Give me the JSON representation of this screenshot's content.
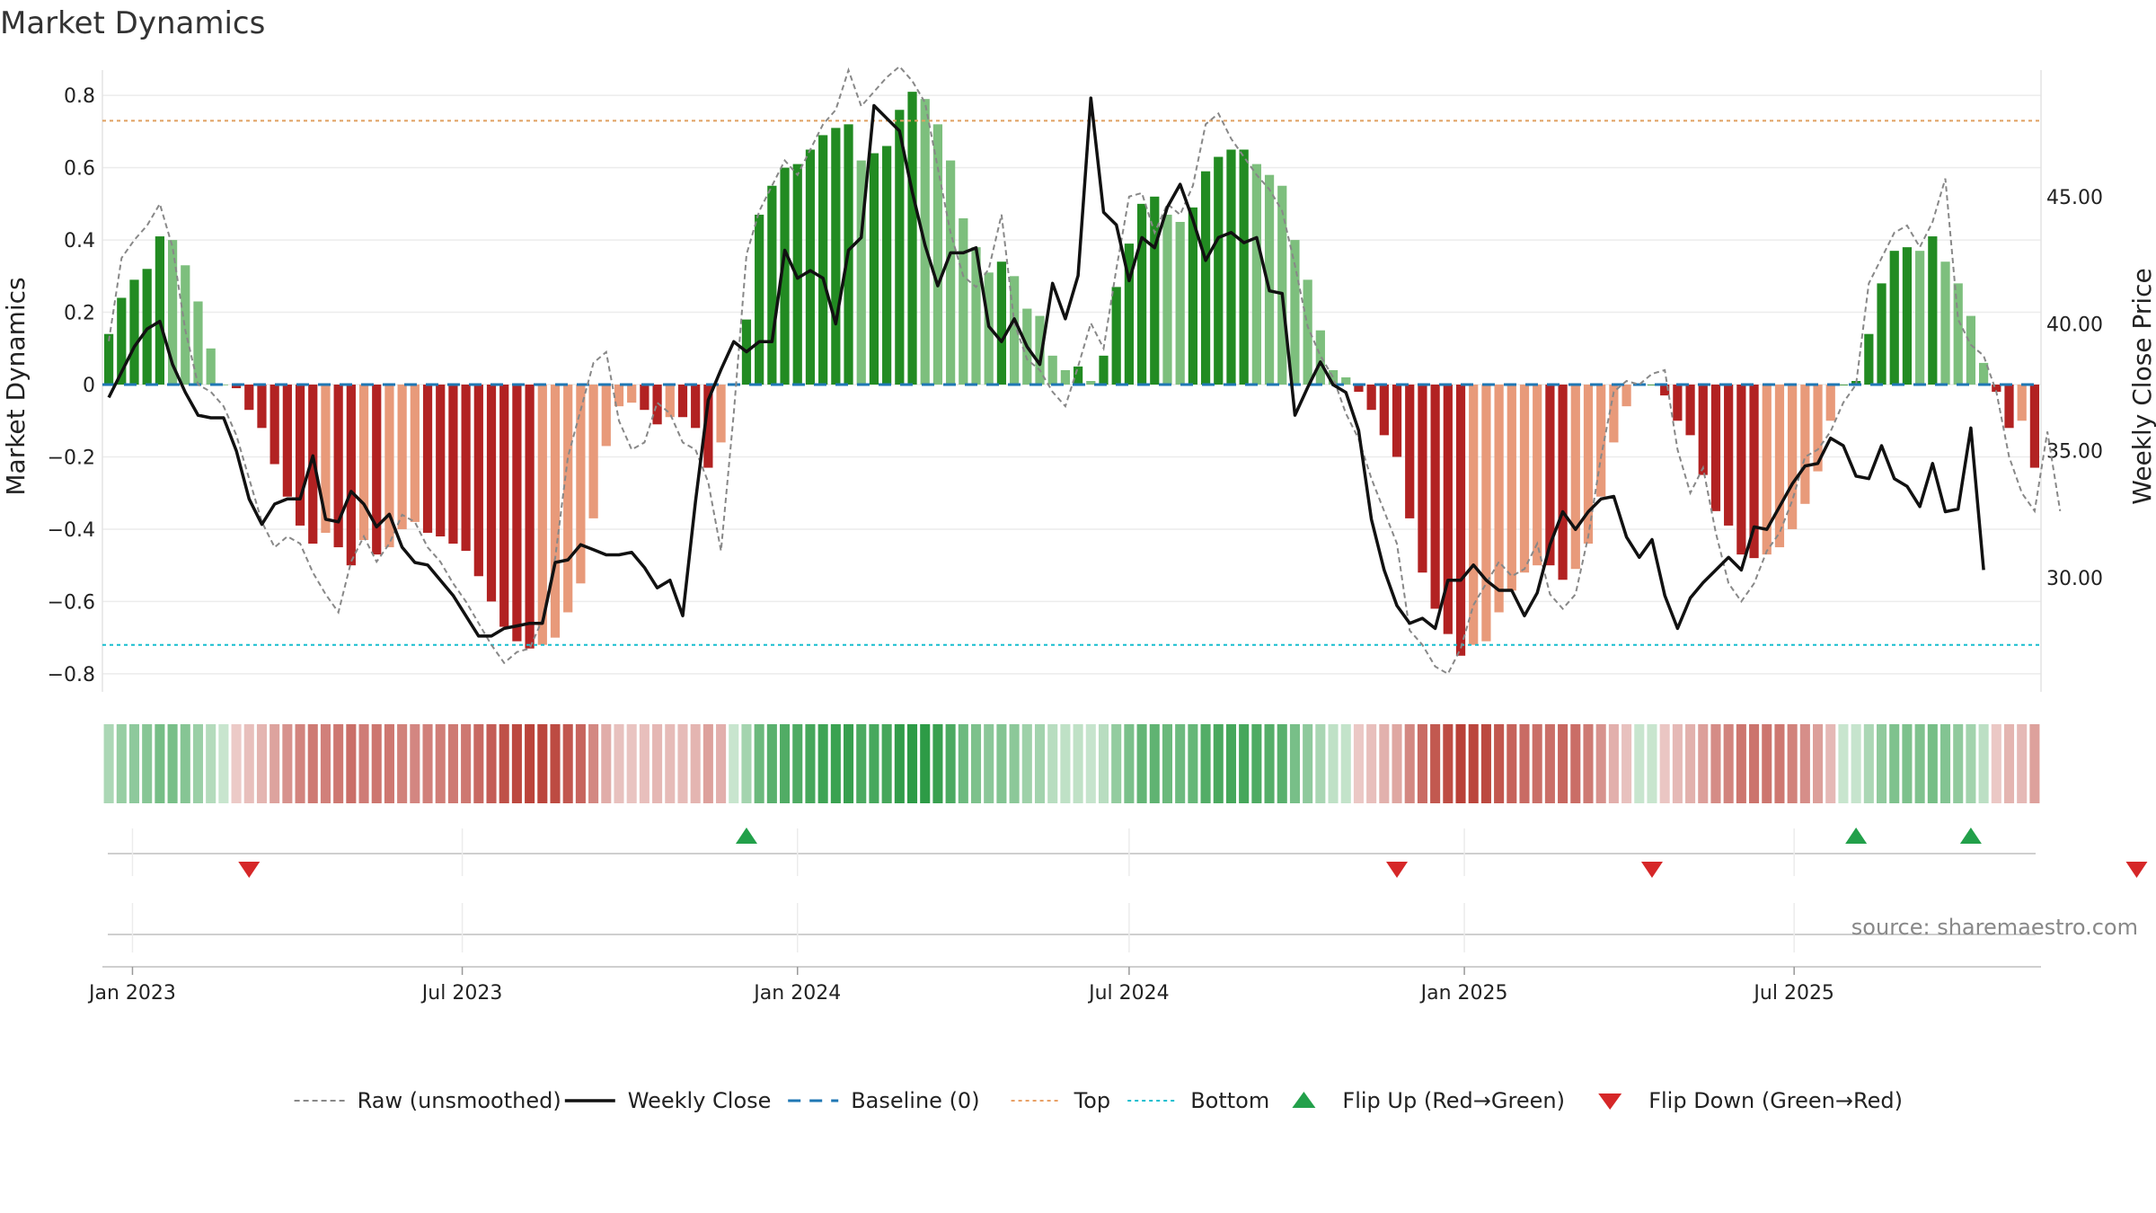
{
  "title": "Market Dynamics",
  "source": "source: sharemaestro.com",
  "chart_data": {
    "type": "bar",
    "x": "weekly dates, 2022-12-19 to 2025-09-01",
    "first_week": "2022-12-19",
    "ylabel": "Market Dynamics",
    "y2label": "Weekly Close Price",
    "ylim": [
      -0.85,
      0.87
    ],
    "y_ticks": [
      {
        "v": 0.8,
        "t": "0.8"
      },
      {
        "v": 0.6,
        "t": "0.6"
      },
      {
        "v": 0.4,
        "t": "0.4"
      },
      {
        "v": 0.2,
        "t": "0.2"
      },
      {
        "v": 0,
        "t": "0"
      },
      {
        "v": -0.2,
        "t": "−0.2"
      },
      {
        "v": -0.4,
        "t": "−0.4"
      },
      {
        "v": -0.6,
        "t": "−0.6"
      },
      {
        "v": -0.8,
        "t": "−0.8"
      }
    ],
    "y2lim": [
      25.5,
      50.0
    ],
    "y2_ticks": [
      {
        "v": 45,
        "t": "45.00"
      },
      {
        "v": 40,
        "t": "40.00"
      },
      {
        "v": 35,
        "t": "35.00"
      },
      {
        "v": 30,
        "t": "30.00"
      }
    ],
    "x_ticks": [
      {
        "date": "2023-01-01",
        "t": "Jan 2023"
      },
      {
        "date": "2023-07-01",
        "t": "Jul 2023"
      },
      {
        "date": "2024-01-01",
        "t": "Jan 2024"
      },
      {
        "date": "2024-07-01",
        "t": "Jul 2024"
      },
      {
        "date": "2025-01-01",
        "t": "Jan 2025"
      },
      {
        "date": "2025-07-01",
        "t": "Jul 2025"
      }
    ],
    "top_level": 0.73,
    "bottom_level": -0.72,
    "baseline": 0,
    "series": [
      {
        "name": "Market Dynamics",
        "type": "bar",
        "values": [
          0.14,
          0.24,
          0.29,
          0.32,
          0.41,
          0.4,
          0.33,
          0.23,
          0.1,
          0.0,
          -0.01,
          -0.07,
          -0.12,
          -0.22,
          -0.31,
          -0.39,
          -0.44,
          -0.41,
          -0.45,
          -0.5,
          -0.43,
          -0.47,
          -0.45,
          -0.4,
          -0.38,
          -0.41,
          -0.42,
          -0.44,
          -0.46,
          -0.53,
          -0.6,
          -0.67,
          -0.71,
          -0.73,
          -0.72,
          -0.7,
          -0.63,
          -0.55,
          -0.37,
          -0.17,
          -0.06,
          -0.05,
          -0.07,
          -0.11,
          -0.09,
          -0.09,
          -0.12,
          -0.23,
          -0.16,
          0.0,
          0.18,
          0.47,
          0.55,
          0.6,
          0.61,
          0.65,
          0.69,
          0.71,
          0.72,
          0.62,
          0.64,
          0.66,
          0.76,
          0.81,
          0.79,
          0.72,
          0.62,
          0.46,
          0.38,
          0.31,
          0.34,
          0.3,
          0.21,
          0.19,
          0.08,
          0.04,
          0.05,
          0.01,
          0.08,
          0.27,
          0.39,
          0.5,
          0.52,
          0.47,
          0.45,
          0.49,
          0.59,
          0.63,
          0.65,
          0.65,
          0.61,
          0.58,
          0.55,
          0.4,
          0.29,
          0.15,
          0.04,
          0.02,
          -0.02,
          -0.07,
          -0.14,
          -0.2,
          -0.37,
          -0.52,
          -0.62,
          -0.69,
          -0.75,
          -0.72,
          -0.71,
          -0.63,
          -0.57,
          -0.52,
          -0.5,
          -0.5,
          -0.54,
          -0.51,
          -0.44,
          -0.31,
          -0.16,
          -0.06,
          0.0,
          0.0,
          -0.03,
          -0.1,
          -0.14,
          -0.25,
          -0.35,
          -0.39,
          -0.47,
          -0.48,
          -0.47,
          -0.45,
          -0.4,
          -0.33,
          -0.24,
          -0.1,
          0.0,
          0.01,
          0.14,
          0.28,
          0.37,
          0.38,
          0.37,
          0.41,
          0.34,
          0.28,
          0.19,
          0.06,
          -0.02,
          -0.12,
          -0.1,
          -0.23
        ]
      },
      {
        "name": "Raw (unsmoothed)",
        "type": "line",
        "values": [
          0.12,
          0.35,
          0.4,
          0.44,
          0.5,
          0.38,
          0.15,
          0.0,
          -0.02,
          -0.06,
          -0.14,
          -0.26,
          -0.38,
          -0.45,
          -0.42,
          -0.44,
          -0.52,
          -0.58,
          -0.63,
          -0.49,
          -0.42,
          -0.49,
          -0.44,
          -0.36,
          -0.38,
          -0.45,
          -0.49,
          -0.55,
          -0.6,
          -0.66,
          -0.72,
          -0.77,
          -0.74,
          -0.73,
          -0.65,
          -0.48,
          -0.2,
          -0.07,
          0.06,
          0.09,
          -0.1,
          -0.18,
          -0.16,
          -0.05,
          -0.08,
          -0.16,
          -0.18,
          -0.27,
          -0.46,
          -0.08,
          0.36,
          0.48,
          0.55,
          0.62,
          0.58,
          0.65,
          0.72,
          0.76,
          0.87,
          0.77,
          0.81,
          0.85,
          0.88,
          0.84,
          0.78,
          0.6,
          0.42,
          0.3,
          0.27,
          0.32,
          0.47,
          0.17,
          0.07,
          0.04,
          -0.02,
          -0.06,
          0.05,
          0.17,
          0.1,
          0.32,
          0.52,
          0.53,
          0.42,
          0.5,
          0.47,
          0.55,
          0.72,
          0.75,
          0.68,
          0.63,
          0.58,
          0.54,
          0.48,
          0.33,
          0.16,
          0.08,
          0.02,
          -0.08,
          -0.15,
          -0.26,
          -0.35,
          -0.44,
          -0.68,
          -0.72,
          -0.78,
          -0.8,
          -0.73,
          -0.61,
          -0.55,
          -0.49,
          -0.53,
          -0.51,
          -0.44,
          -0.58,
          -0.62,
          -0.58,
          -0.42,
          -0.2,
          -0.02,
          0.01,
          0.0,
          0.03,
          0.04,
          -0.18,
          -0.3,
          -0.23,
          -0.41,
          -0.55,
          -0.6,
          -0.55,
          -0.46,
          -0.41,
          -0.32,
          -0.2,
          -0.18,
          -0.13,
          -0.05,
          0.0,
          0.28,
          0.35,
          0.42,
          0.44,
          0.38,
          0.45,
          0.57,
          0.18,
          0.11,
          0.08,
          -0.02,
          -0.2,
          -0.3,
          -0.35,
          -0.13,
          -0.35
        ]
      },
      {
        "name": "Weekly Close",
        "type": "line",
        "axis": "right",
        "values": [
          37.1,
          38.1,
          39.1,
          39.8,
          40.1,
          38.4,
          37.3,
          36.4,
          36.3,
          36.3,
          35.0,
          33.1,
          32.1,
          32.9,
          33.1,
          33.1,
          34.8,
          32.3,
          32.2,
          33.4,
          32.9,
          32.0,
          32.5,
          31.2,
          30.6,
          30.5,
          29.9,
          29.3,
          28.5,
          27.7,
          27.7,
          28.0,
          28.1,
          28.2,
          28.2,
          30.6,
          30.7,
          31.3,
          31.1,
          30.9,
          30.9,
          31.0,
          30.4,
          29.6,
          29.9,
          28.5,
          33.0,
          37.0,
          38.2,
          39.3,
          38.9,
          39.3,
          39.3,
          42.9,
          41.8,
          42.1,
          41.8,
          40.0,
          42.9,
          43.4,
          48.6,
          48.1,
          47.6,
          45.2,
          43.1,
          41.5,
          42.8,
          42.8,
          43.0,
          39.9,
          39.3,
          40.2,
          39.1,
          38.4,
          41.6,
          40.2,
          41.9,
          48.9,
          44.4,
          43.9,
          41.7,
          43.4,
          43.0,
          44.6,
          45.5,
          44.1,
          42.5,
          43.4,
          43.6,
          43.2,
          43.4,
          41.3,
          41.2,
          36.4,
          37.5,
          38.5,
          37.6,
          37.3,
          35.8,
          32.3,
          30.3,
          28.9,
          28.2,
          28.4,
          28.0,
          29.9,
          29.9,
          30.5,
          29.9,
          29.5,
          29.5,
          28.5,
          29.4,
          31.3,
          32.6,
          31.9,
          32.6,
          33.1,
          33.2,
          31.6,
          30.8,
          31.5,
          29.3,
          28.0,
          29.2,
          29.8,
          30.3,
          30.8,
          30.3,
          32.0,
          31.9,
          32.8,
          33.7,
          34.4,
          34.5,
          35.5,
          35.2,
          34.0,
          33.9,
          35.2,
          33.9,
          33.6,
          32.8,
          34.5,
          32.6,
          32.7,
          35.9,
          30.3
        ]
      }
    ],
    "legend_position": "bottom",
    "legend": [
      {
        "label": "Raw (unsmoothed)",
        "style": "dashed",
        "color": "#888888"
      },
      {
        "label": "Weekly Close",
        "style": "solid",
        "color": "#111111"
      },
      {
        "label": "Baseline (0)",
        "style": "dashed",
        "color": "#1f77b4"
      },
      {
        "label": "Top",
        "style": "dotted",
        "color": "#e8a065"
      },
      {
        "label": "Bottom",
        "style": "dotted",
        "color": "#17becf"
      },
      {
        "label": "Flip Up (Red→Green)",
        "style": "triangle-up",
        "color": "#22a04a"
      },
      {
        "label": "Flip Down (Green→Red)",
        "style": "triangle-down",
        "color": "#d62728"
      }
    ],
    "flips_up": [
      50,
      137,
      146
    ],
    "flips_down": [
      11,
      101,
      121,
      159
    ],
    "colors": {
      "pos_strong": "#228b22",
      "pos_weak": "#7dbf7d",
      "neg_strong": "#b22222",
      "neg_weak": "#e89a7a",
      "top": "#e0a060",
      "bottom": "#17becf",
      "baseline": "#1f77b4",
      "raw": "#888888",
      "close": "#111111",
      "flip_up": "#22a04a",
      "flip_down": "#d62728"
    }
  }
}
